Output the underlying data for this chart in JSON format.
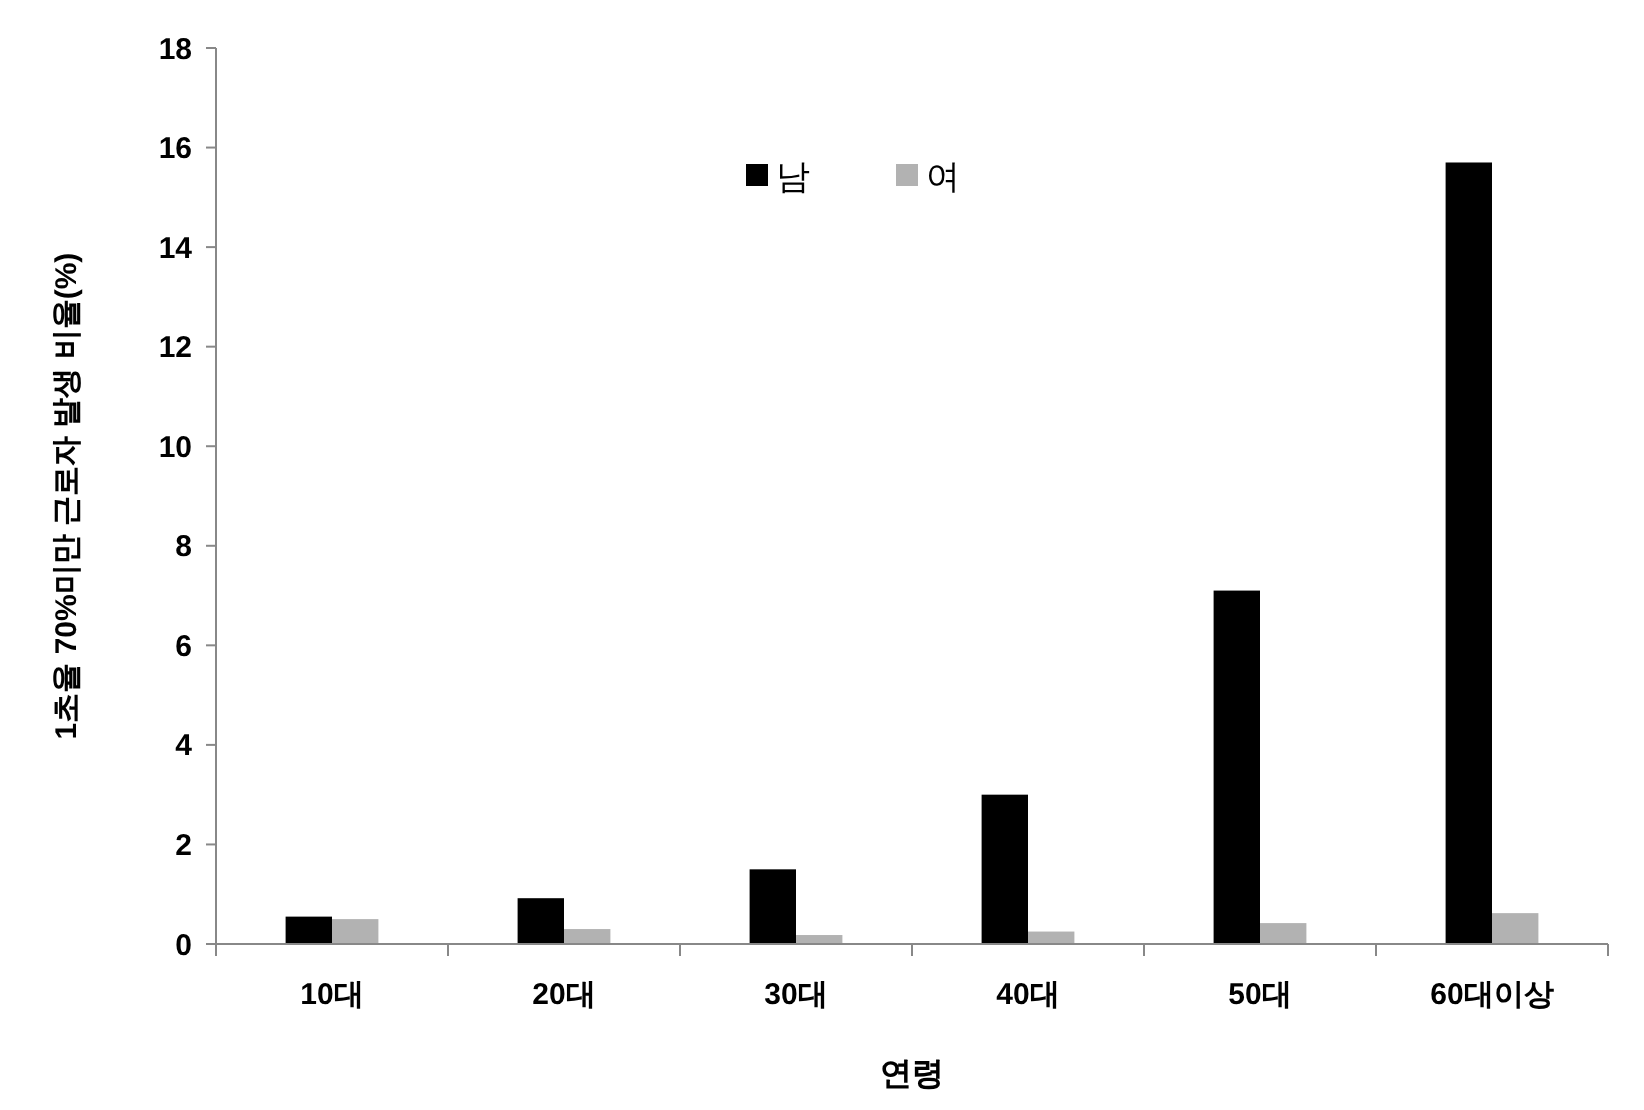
{
  "chart_data": {
    "type": "bar",
    "xlabel": "연령",
    "ylabel": "1초율 70%미만 근로자 발생 비율(%)",
    "categories": [
      "10대",
      "20대",
      "30대",
      "40대",
      "50대",
      "60대이상"
    ],
    "series": [
      {
        "name": "남",
        "color": "#000000",
        "values": [
          0.55,
          0.92,
          1.5,
          3.0,
          7.1,
          15.7
        ]
      },
      {
        "name": "여",
        "color": "#b2b2b2",
        "values": [
          0.5,
          0.3,
          0.18,
          0.25,
          0.42,
          0.62
        ]
      }
    ],
    "ylim": [
      0,
      18
    ],
    "yticks": [
      0,
      2,
      4,
      6,
      8,
      10,
      12,
      14,
      16,
      18
    ],
    "grid": false,
    "legend": "top"
  }
}
